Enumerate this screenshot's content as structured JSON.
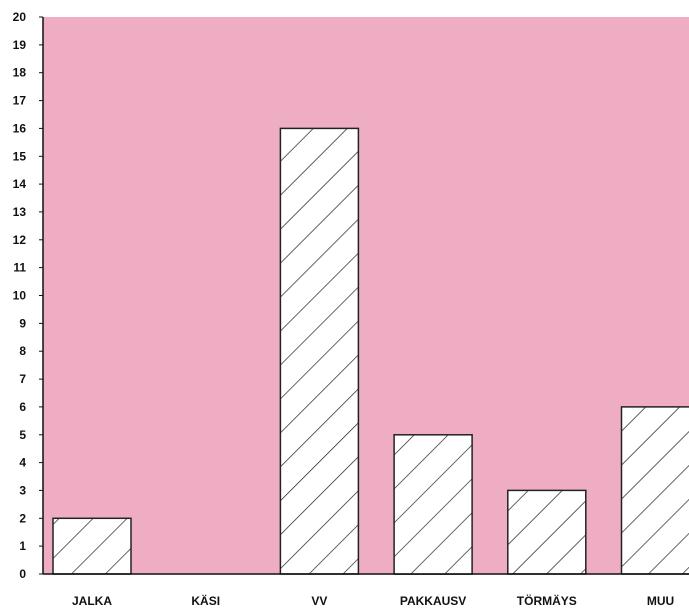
{
  "chart_data": {
    "type": "bar",
    "categories": [
      "JALKA",
      "KÄSI",
      "VV",
      "PAKKAUSV",
      "TÖRMÄYS",
      "MUU"
    ],
    "values": [
      2,
      0,
      16,
      5,
      3,
      6
    ],
    "ylim": [
      0,
      20
    ],
    "yticks": [
      "0",
      "1",
      "2",
      "3",
      "4",
      "5",
      "6",
      "7",
      "8",
      "9",
      "10",
      "11",
      "12",
      "13",
      "14",
      "15",
      "16",
      "17",
      "18",
      "19",
      "20"
    ],
    "grid": false,
    "colors": {
      "plot_background": "#efadc4",
      "bar_fill": "#ffffff",
      "bar_hatch": "#222222",
      "axis": "#111111"
    },
    "bar_pattern": "diagonal-hatch"
  }
}
